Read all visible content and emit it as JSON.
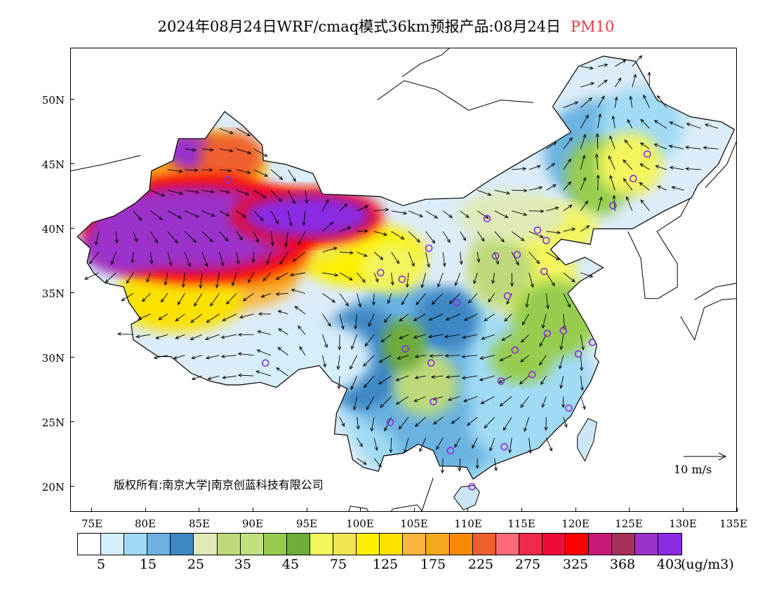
{
  "title": {
    "main": "2024年08月24日WRF/cmaq模式36km预报产品:08月24日",
    "species": "PM10"
  },
  "axes": {
    "y_labels": [
      "50N",
      "45N",
      "40N",
      "35N",
      "30N",
      "25N",
      "20N"
    ],
    "x_labels": [
      "75E",
      "80E",
      "85E",
      "90E",
      "95E",
      "100E",
      "105E",
      "110E",
      "115E",
      "120E",
      "125E",
      "130E",
      "135E"
    ]
  },
  "map_extent": {
    "lon_min": 73,
    "lon_max": 135,
    "lat_min": 18,
    "lat_max": 54
  },
  "copyright": "版权所有:南京大学|南京创蓝科技有限公司",
  "reference_vector": "10 m/s",
  "colorbar": {
    "colors": [
      "#ffffff",
      "#d4eefa",
      "#a0daf5",
      "#6bb2e0",
      "#3d87c4",
      "#dfeab8",
      "#bdd97a",
      "#c2e07e",
      "#96cd4f",
      "#6fac38",
      "#f2f55d",
      "#f1e552",
      "#fcf000",
      "#fbe100",
      "#f8b640",
      "#f6a71d",
      "#fa8a05",
      "#f0602d",
      "#ff6b78",
      "#f2294e",
      "#f00a39",
      "#ff0000",
      "#c8197a",
      "#a6315a",
      "#9b33cb",
      "#8a2be2"
    ],
    "labels": [
      "5",
      "15",
      "25",
      "35",
      "45",
      "75",
      "125",
      "175",
      "225",
      "275",
      "325",
      "368",
      "403"
    ],
    "unit": "(ug/m3)"
  },
  "stations": [
    [
      87.6,
      43.8
    ],
    [
      126.6,
      45.8
    ],
    [
      125.3,
      43.9
    ],
    [
      123.4,
      41.8
    ],
    [
      111.7,
      40.8
    ],
    [
      116.4,
      39.9
    ],
    [
      117.2,
      39.1
    ],
    [
      114.5,
      38.0
    ],
    [
      112.5,
      37.9
    ],
    [
      106.3,
      38.5
    ],
    [
      103.8,
      36.1
    ],
    [
      101.8,
      36.6
    ],
    [
      117.0,
      36.7
    ],
    [
      113.6,
      34.8
    ],
    [
      108.9,
      34.3
    ],
    [
      104.1,
      30.7
    ],
    [
      106.5,
      29.6
    ],
    [
      91.1,
      29.6
    ],
    [
      114.3,
      30.6
    ],
    [
      117.3,
      31.9
    ],
    [
      118.8,
      32.1
    ],
    [
      121.5,
      31.2
    ],
    [
      120.2,
      30.3
    ],
    [
      115.9,
      28.7
    ],
    [
      113.0,
      28.2
    ],
    [
      106.7,
      26.6
    ],
    [
      102.7,
      25.0
    ],
    [
      119.3,
      26.1
    ],
    [
      113.3,
      23.1
    ],
    [
      108.3,
      22.8
    ],
    [
      110.3,
      20.0
    ]
  ],
  "wind_field": "surface wind vectors"
}
